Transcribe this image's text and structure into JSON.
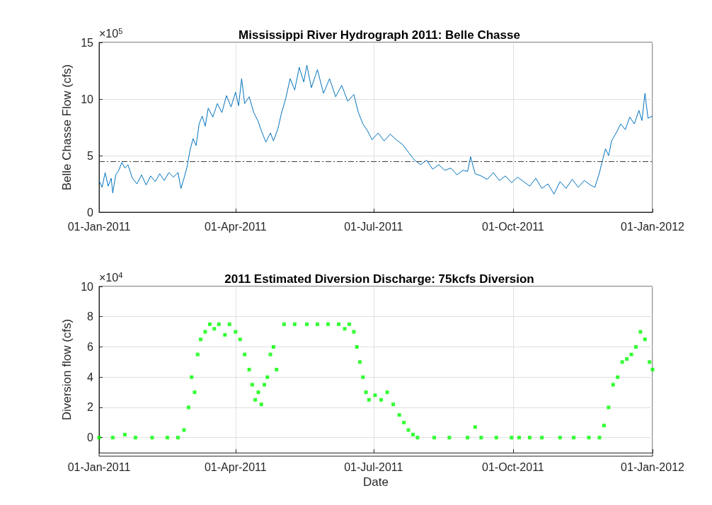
{
  "chart_data": [
    {
      "type": "line",
      "title": "Mississippi River Hydrograph 2011: Belle Chasse",
      "ylabel": "Belle Chasse Flow (cfs)",
      "annotations": [
        "×10$^{5}$"
      ],
      "x": [
        "2011-01-01",
        "2011-01-03",
        "2011-01-05",
        "2011-01-07",
        "2011-01-09",
        "2011-01-10",
        "2011-01-12",
        "2011-01-14",
        "2011-01-16",
        "2011-01-18",
        "2011-01-20",
        "2011-01-23",
        "2011-01-26",
        "2011-01-29",
        "2011-02-01",
        "2011-02-04",
        "2011-02-07",
        "2011-02-10",
        "2011-02-13",
        "2011-02-16",
        "2011-02-19",
        "2011-02-22",
        "2011-02-24",
        "2011-02-26",
        "2011-02-28",
        "2011-03-02",
        "2011-03-04",
        "2011-03-06",
        "2011-03-08",
        "2011-03-10",
        "2011-03-12",
        "2011-03-14",
        "2011-03-17",
        "2011-03-20",
        "2011-03-23",
        "2011-03-26",
        "2011-03-29",
        "2011-04-01",
        "2011-04-03",
        "2011-04-05",
        "2011-04-07",
        "2011-04-10",
        "2011-04-13",
        "2011-04-16",
        "2011-04-18",
        "2011-04-21",
        "2011-04-24",
        "2011-04-26",
        "2011-04-29",
        "2011-05-01",
        "2011-05-04",
        "2011-05-07",
        "2011-05-10",
        "2011-05-13",
        "2011-05-16",
        "2011-05-18",
        "2011-05-21",
        "2011-05-25",
        "2011-05-29",
        "2011-06-02",
        "2011-06-06",
        "2011-06-10",
        "2011-06-14",
        "2011-06-18",
        "2011-06-21",
        "2011-06-24",
        "2011-06-27",
        "2011-06-30",
        "2011-07-04",
        "2011-07-08",
        "2011-07-12",
        "2011-07-16",
        "2011-07-20",
        "2011-07-24",
        "2011-07-28",
        "2011-08-01",
        "2011-08-05",
        "2011-08-09",
        "2011-08-13",
        "2011-08-17",
        "2011-08-21",
        "2011-08-25",
        "2011-08-29",
        "2011-09-01",
        "2011-09-03",
        "2011-09-06",
        "2011-09-10",
        "2011-09-14",
        "2011-09-18",
        "2011-09-22",
        "2011-09-26",
        "2011-09-30",
        "2011-10-04",
        "2011-10-12",
        "2011-10-16",
        "2011-10-20",
        "2011-10-24",
        "2011-10-28",
        "2011-11-01",
        "2011-11-05",
        "2011-11-09",
        "2011-11-13",
        "2011-11-17",
        "2011-11-21",
        "2011-11-24",
        "2011-11-27",
        "2011-11-29",
        "2011-12-01",
        "2011-12-03",
        "2011-12-05",
        "2011-12-08",
        "2011-12-11",
        "2011-12-14",
        "2011-12-17",
        "2011-12-20",
        "2011-12-23",
        "2011-12-25",
        "2011-12-27",
        "2011-12-29",
        "2012-01-01"
      ],
      "series": [
        {
          "color": "#0072bd",
          "values": [
            2.8,
            2.2,
            3.5,
            2.3,
            3.0,
            1.7,
            3.3,
            3.7,
            4.4,
            3.9,
            4.2,
            3.0,
            2.5,
            3.3,
            2.4,
            3.2,
            2.7,
            3.4,
            2.8,
            3.5,
            3.1,
            3.5,
            2.1,
            3.0,
            4.0,
            5.5,
            6.5,
            5.9,
            7.8,
            8.5,
            7.6,
            9.2,
            8.4,
            9.6,
            8.8,
            10.3,
            9.3,
            10.6,
            9.4,
            11.8,
            9.6,
            10.2,
            8.8,
            8.0,
            7.2,
            6.2,
            7.0,
            6.3,
            7.4,
            8.6,
            10.0,
            11.8,
            10.8,
            12.8,
            11.5,
            13.0,
            11.0,
            12.6,
            10.5,
            11.8,
            10.2,
            11.2,
            9.8,
            10.4,
            8.8,
            7.8,
            7.2,
            6.4,
            7.0,
            6.3,
            6.9,
            6.4,
            6.0,
            5.3,
            4.6,
            4.2,
            4.6,
            3.8,
            4.2,
            3.7,
            3.9,
            3.3,
            3.7,
            3.6,
            4.9,
            3.4,
            3.2,
            2.9,
            3.5,
            2.8,
            3.2,
            2.6,
            3.1,
            2.3,
            3.0,
            2.1,
            2.5,
            1.6,
            2.7,
            2.1,
            2.9,
            2.2,
            2.8,
            2.4,
            2.2,
            3.5,
            4.6,
            5.6,
            5.0,
            6.3,
            7.0,
            7.8,
            7.3,
            8.4,
            7.8,
            9.0,
            8.1,
            10.5,
            8.3,
            8.5
          ]
        }
      ],
      "xlim": [
        "2011-01-01",
        "2012-01-01"
      ],
      "xticks": [
        {
          "value": "2011-01-01",
          "label": "01-Jan-2011"
        },
        {
          "value": "2011-04-01",
          "label": "01-Apr-2011"
        },
        {
          "value": "2011-07-01",
          "label": "01-Jul-2011"
        },
        {
          "value": "2011-10-01",
          "label": "01-Oct-2011"
        },
        {
          "value": "2012-01-01",
          "label": "01-Jan-2012"
        }
      ],
      "ylim": [
        0,
        15
      ],
      "yticks": [
        0,
        5,
        10,
        15
      ],
      "ref_lines": [
        {
          "axis": "y",
          "value": 4.5,
          "label": null,
          "color": "#404040",
          "line_style": "dashed"
        }
      ],
      "grid": true,
      "marker": "none",
      "line_style": "solid"
    },
    {
      "type": "scatter",
      "title": "2011 Estimated Diversion Discharge: 75kcfs Diversion",
      "ylabel": "Diversion flow (cfs)",
      "xlabel": "Date",
      "annotations": [
        "×10$^{4}$"
      ],
      "x": [
        "2011-01-01",
        "2011-01-10",
        "2011-01-18",
        "2011-01-25",
        "2011-02-05",
        "2011-02-15",
        "2011-02-22",
        "2011-02-26",
        "2011-03-01",
        "2011-03-03",
        "2011-03-05",
        "2011-03-07",
        "2011-03-09",
        "2011-03-12",
        "2011-03-15",
        "2011-03-18",
        "2011-03-21",
        "2011-03-25",
        "2011-03-28",
        "2011-04-01",
        "2011-04-04",
        "2011-04-07",
        "2011-04-10",
        "2011-04-12",
        "2011-04-14",
        "2011-04-16",
        "2011-04-18",
        "2011-04-20",
        "2011-04-22",
        "2011-04-24",
        "2011-04-26",
        "2011-04-28",
        "2011-05-03",
        "2011-05-10",
        "2011-05-18",
        "2011-05-25",
        "2011-06-01",
        "2011-06-08",
        "2011-06-12",
        "2011-06-15",
        "2011-06-18",
        "2011-06-20",
        "2011-06-22",
        "2011-06-24",
        "2011-06-26",
        "2011-06-28",
        "2011-07-02",
        "2011-07-06",
        "2011-07-10",
        "2011-07-14",
        "2011-07-18",
        "2011-07-21",
        "2011-07-24",
        "2011-07-27",
        "2011-07-30",
        "2011-08-10",
        "2011-08-20",
        "2011-09-01",
        "2011-09-06",
        "2011-09-10",
        "2011-09-20",
        "2011-09-30",
        "2011-10-05",
        "2011-10-12",
        "2011-10-20",
        "2011-11-01",
        "2011-11-10",
        "2011-11-20",
        "2011-11-27",
        "2011-11-30",
        "2011-12-03",
        "2011-12-06",
        "2011-12-09",
        "2011-12-12",
        "2011-12-15",
        "2011-12-18",
        "2011-12-21",
        "2011-12-24",
        "2011-12-27",
        "2011-12-30",
        "2012-01-01"
      ],
      "series": [
        {
          "color": "#00ff00",
          "values": [
            0,
            0,
            0.2,
            0,
            0,
            0,
            0,
            0.5,
            2.0,
            4.0,
            3.0,
            5.5,
            6.5,
            7.0,
            7.5,
            7.2,
            7.5,
            6.8,
            7.5,
            7.0,
            6.5,
            5.5,
            4.5,
            3.5,
            2.5,
            3.0,
            2.2,
            3.5,
            4.0,
            5.5,
            6.0,
            4.5,
            7.5,
            7.5,
            7.5,
            7.5,
            7.5,
            7.5,
            7.2,
            7.5,
            7.0,
            6.0,
            5.0,
            4.0,
            3.0,
            2.5,
            2.8,
            2.5,
            3.0,
            2.2,
            1.5,
            1.0,
            0.5,
            0.2,
            0,
            0,
            0,
            0,
            0.7,
            0,
            0,
            0,
            0,
            0,
            0,
            0,
            0,
            0,
            0,
            0.8,
            2.0,
            3.5,
            4.0,
            5.0,
            5.2,
            5.5,
            6.0,
            7.0,
            6.5,
            5.0,
            4.5
          ]
        }
      ],
      "xlim": [
        "2011-01-01",
        "2012-01-01"
      ],
      "xticks": [
        {
          "value": "2011-01-01",
          "label": "01-Jan-2011"
        },
        {
          "value": "2011-04-01",
          "label": "01-Apr-2011"
        },
        {
          "value": "2011-07-01",
          "label": "01-Jul-2011"
        },
        {
          "value": "2011-10-01",
          "label": "01-Oct-2011"
        },
        {
          "value": "2012-01-01",
          "label": "01-Jan-2012"
        }
      ],
      "ylim": [
        -1,
        10
      ],
      "yticks": [
        0,
        2,
        4,
        6,
        8,
        10
      ],
      "grid": true,
      "marker": "square"
    }
  ]
}
